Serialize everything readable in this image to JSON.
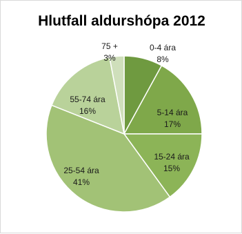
{
  "chart_data": {
    "type": "pie",
    "title": "Hlutfall aldurshópa 2012",
    "categories": [
      "0-4 ára",
      "5-14 ára",
      "15-24 ára",
      "25-54 ára",
      "55-74 ára",
      "75 +"
    ],
    "values": [
      8,
      17,
      15,
      41,
      16,
      3
    ],
    "value_labels": [
      "8%",
      "17%",
      "15%",
      "41%",
      "16%",
      "3%"
    ],
    "colors": [
      "#6f9a40",
      "#7fa84a",
      "#8cb457",
      "#a2c276",
      "#b9d29a",
      "#cfdfbb"
    ],
    "legend": "none"
  }
}
